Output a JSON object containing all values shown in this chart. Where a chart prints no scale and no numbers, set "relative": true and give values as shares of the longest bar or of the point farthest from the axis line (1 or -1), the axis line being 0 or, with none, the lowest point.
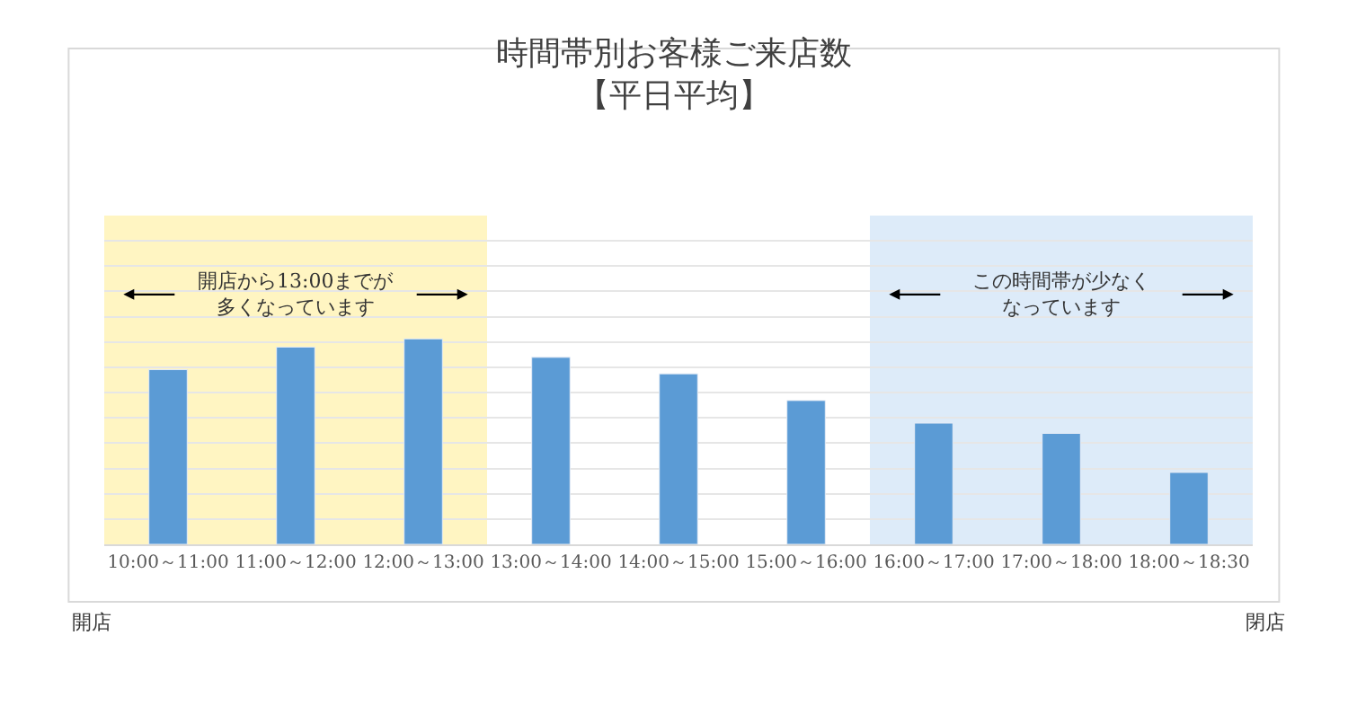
{
  "chart_data": {
    "type": "bar",
    "title": "時間帯別お客様ご来店数",
    "subtitle": "【平日平均】",
    "categories": [
      "10:00～11:00",
      "11:00～12:00",
      "12:00～13:00",
      "13:00～14:00",
      "14:00～15:00",
      "15:00～16:00",
      "16:00～17:00",
      "17:00～18:00",
      "18:00～18:30"
    ],
    "values": [
      0.85,
      0.96,
      1,
      0.91,
      0.83,
      0.7,
      0.59,
      0.54,
      0.35
    ],
    "color": "#5b9bd5",
    "relative": true,
    "grid": "y",
    "bands": [
      {
        "axis": "x",
        "from": "10:00～11:00",
        "to": "12:00～13:00",
        "color": "#fff5c2",
        "label": "開店から13:00までが多くなっています"
      },
      {
        "axis": "x",
        "from": "16:00～17:00",
        "to": "18:00～18:30",
        "color": "#ddebf9",
        "label": "この時間帯が少なくなっています"
      }
    ],
    "annotations": [
      "開店",
      "閉店"
    ]
  }
}
